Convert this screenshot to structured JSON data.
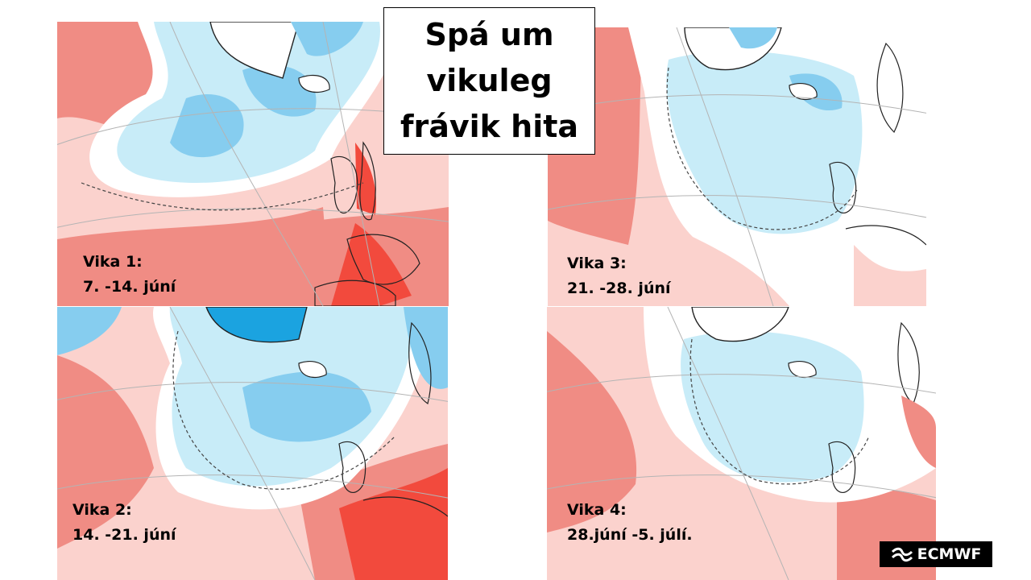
{
  "title": {
    "line1": "Spá um",
    "line2": "vikuleg",
    "line3": "frávik hita"
  },
  "panels": [
    {
      "week": "Vika 1:",
      "dates": "7. -14. júní"
    },
    {
      "week": "Vika 2:",
      "dates": "14. -21. júní"
    },
    {
      "week": "Vika 3:",
      "dates": "21. -28. júní"
    },
    {
      "week": "Vika 4:",
      "dates": "28.júní -5. júlí."
    }
  ],
  "logo": {
    "text": "ECMWF",
    "icon": "ecmwf-logo-icon"
  },
  "palette": {
    "warm_strong": "#f24a3d",
    "warm_mid": "#f08c84",
    "warm_light": "#fbd2cd",
    "neutral": "#ffffff",
    "cool_light": "#c8ecf8",
    "cool_mid": "#86cdef",
    "cool_strong": "#1ba3e0",
    "land_outline": "#222222",
    "graticule": "#b4b4b4"
  }
}
